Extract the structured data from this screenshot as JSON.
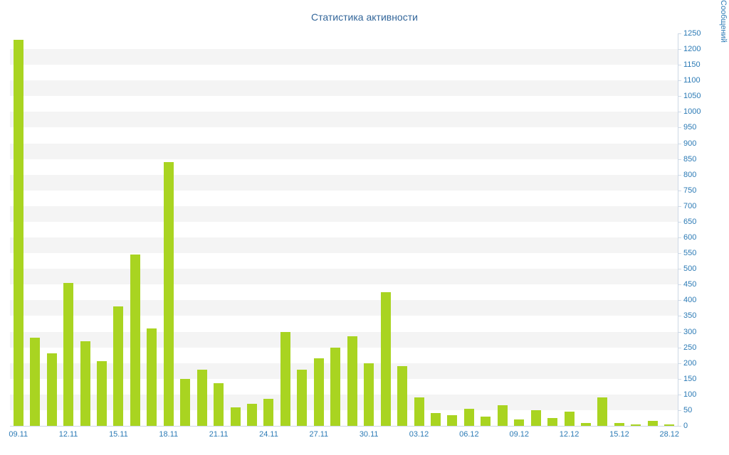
{
  "chart_data": {
    "type": "bar",
    "title": "Статистика активности",
    "ylabel": "Сообщений",
    "ylim": [
      0,
      1250
    ],
    "y_tick_step": 50,
    "x_tick_labels": [
      "09.11",
      "12.11",
      "15.11",
      "18.11",
      "21.11",
      "24.11",
      "27.11",
      "30.11",
      "03.12",
      "06.12",
      "09.12",
      "12.12",
      "15.12",
      "28.12"
    ],
    "x_tick_every": 3,
    "values": [
      1230,
      280,
      230,
      455,
      270,
      205,
      380,
      545,
      310,
      840,
      150,
      180,
      135,
      60,
      70,
      85,
      300,
      180,
      215,
      250,
      285,
      200,
      425,
      190,
      90,
      40,
      35,
      55,
      30,
      65,
      20,
      50,
      25,
      45,
      10,
      90,
      10,
      5,
      15,
      5
    ],
    "legend": "off",
    "grid": "alternating-bands",
    "colors": {
      "bar": "#a9d421",
      "band": "#f4f4f4",
      "axis_line": "#cdd8e5",
      "axis_label": "#2b7ab5",
      "title": "#33669a"
    }
  }
}
